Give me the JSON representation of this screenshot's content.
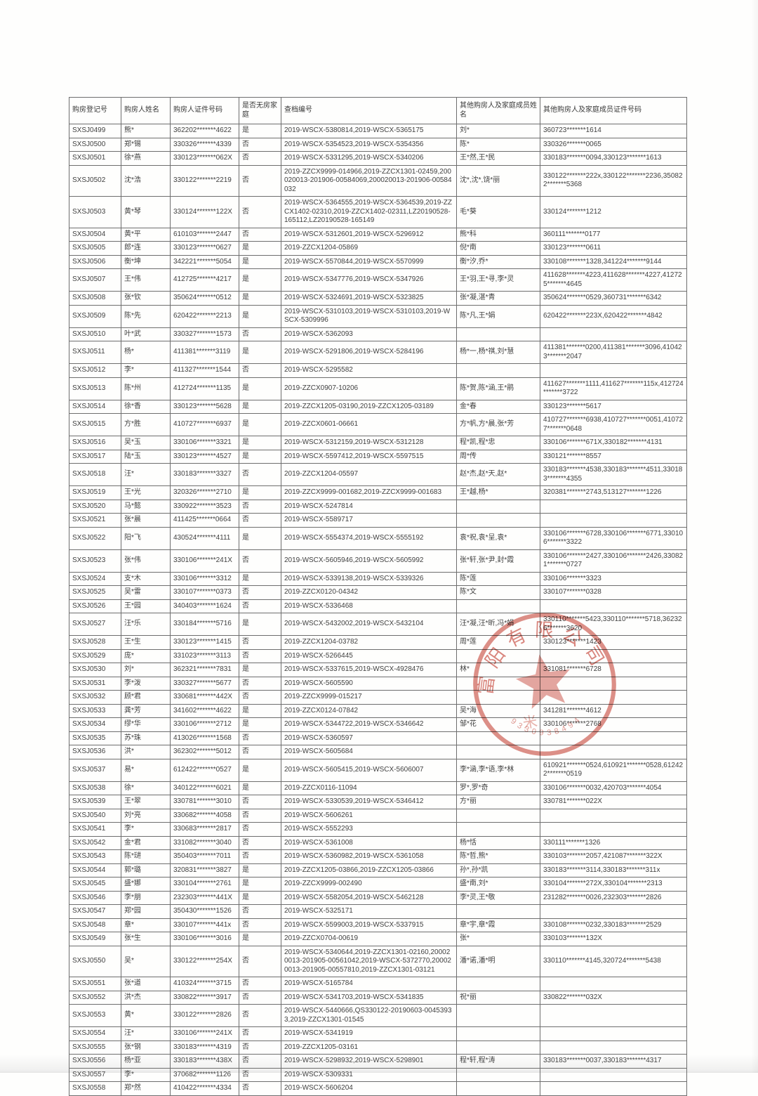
{
  "table": {
    "headers": [
      "购房登记号",
      "购房人姓名",
      "购房人证件号码",
      "是否无房家庭",
      "查档编号",
      "其他购房人及家庭成员姓名",
      "其他购房人及家庭成员证件号码"
    ],
    "rows": [
      [
        "SXSJ0499",
        "熊*",
        "362202*******4622",
        "是",
        "2019-WSCX-5380814,2019-WSCX-5365175",
        "刘*",
        "360723*******1614"
      ],
      [
        "SXSJ0500",
        "郑*锡",
        "330326*******4339",
        "否",
        "2019-WSCX-5354523,2019-WSCX-5354356",
        "陈*",
        "330326*******0065"
      ],
      [
        "SXSJ0501",
        "徐*燕",
        "330123*******062X",
        "否",
        "2019-WSCX-5331295,2019-WSCX-5340206",
        "王*然,王*民",
        "330183*******0094,330123*******1613"
      ],
      [
        "SXSJ0502",
        "沈*浩",
        "330122*******2219",
        "否",
        "2019-ZZCX9999-014966,2019-ZZCX1301-02459,200020013-201906-00584069,200020013-201906-00584032",
        "沈*,沈*,饶*丽",
        "330122*******222x,330122*******2236,350822*******5368"
      ],
      [
        "SXSJ0503",
        "黄*琴",
        "330124*******122X",
        "否",
        "2019-WSCX-5364555,2019-WSCX-5364539,2019-ZZCX1402-02310,2019-ZZCX1402-02311,LZ20190528-165112,LZ20190528-165149",
        "毛*葵",
        "330124*******1212"
      ],
      [
        "SXSJ0504",
        "黄*平",
        "610103*******2447",
        "否",
        "2019-WSCX-5312601,2019-WSCX-5296912",
        "熊*科",
        "360111*******0177"
      ],
      [
        "SXSJ0505",
        "郎*连",
        "330123*******0627",
        "是",
        "2019-ZZCX1204-05869",
        "倪*南",
        "330123*******0611"
      ],
      [
        "SXSJ0506",
        "衡*坤",
        "342221*******5054",
        "是",
        "2019-WSCX-5570844,2019-WSCX-5570999",
        "衡*汐,乔*",
        "330108*******1328,341224*******9144"
      ],
      [
        "SXSJ0507",
        "王*伟",
        "412725*******4217",
        "是",
        "2019-WSCX-5347776,2019-WSCX-5347926",
        "王*羽,王*寻,李*灵",
        "411628*******4223,411628*******4227,412725*******4645"
      ],
      [
        "SXSJ0508",
        "张*钦",
        "350624*******0512",
        "是",
        "2019-WSCX-5324691,2019-WSCX-5323825",
        "张*凝,湛*青",
        "350624*******0529,360731*******6342"
      ],
      [
        "SXSJ0509",
        "陈*先",
        "620422*******2213",
        "是",
        "2019-WSCX-5310103,2019-WSCX-5310103,2019-WSCX-5309996",
        "陈*凡,王*娟",
        "620422*******223X,620422*******4842"
      ],
      [
        "SXSJ0510",
        "叶*武",
        "330327*******1573",
        "否",
        "2019-WSCX-5362093",
        "",
        ""
      ],
      [
        "SXSJ0511",
        "杨*",
        "411381*******3119",
        "是",
        "2019-WSCX-5291806,2019-WSCX-5284196",
        "杨*一,杨*祺,刘*慧",
        "411381*******0200,411381*******3096,410423*******2047"
      ],
      [
        "SXSJ0512",
        "李*",
        "411327*******1544",
        "否",
        "2019-WSCX-5295582",
        "",
        ""
      ],
      [
        "SXSJ0513",
        "陈*州",
        "412724*******1135",
        "是",
        "2019-ZZCX0907-10206",
        "陈*贺,陈*涵,王*鹃",
        "411627*******1111,411627*******115x,412724*******3722"
      ],
      [
        "SXSJ0514",
        "徐*香",
        "330123*******5628",
        "是",
        "2019-ZZCX1205-03190,2019-ZZCX1205-03189",
        "金*春",
        "330123*******5617"
      ],
      [
        "SXSJ0515",
        "方*胜",
        "410727*******6937",
        "是",
        "2019-ZZCX0601-06661",
        "方*帆,方*晨,张*芳",
        "410727*******6938,410727*******0051,410727*******0648"
      ],
      [
        "SXSJ0516",
        "吴*玉",
        "330106*******3321",
        "是",
        "2019-WSCX-5312159,2019-WSCX-5312128",
        "程*凯,程*忠",
        "330106*******671X,330182*******4131"
      ],
      [
        "SXSJ0517",
        "陆*玉",
        "330123*******4527",
        "是",
        "2019-WSCX-5597412,2019-WSCX-5597515",
        "周*传",
        "330121*******8557"
      ],
      [
        "SXSJ0518",
        "汪*",
        "330183*******3327",
        "否",
        "2019-ZZCX1204-05597",
        "赵*杰,赵*天,赵*",
        "330183*******4538,330183*******4511,330183*******4355"
      ],
      [
        "SXSJ0519",
        "王*光",
        "320326*******2710",
        "是",
        "2019-ZZCX9999-001682,2019-ZZCX9999-001683",
        "王*越,杨*",
        "320381*******2743,513127*******1226"
      ],
      [
        "SXSJ0520",
        "马*懿",
        "330922*******3523",
        "否",
        "2019-WSCX-5247814",
        "",
        ""
      ],
      [
        "SXSJ0521",
        "张*晨",
        "411425*******0664",
        "否",
        "2019-WSCX-5589717",
        "",
        ""
      ],
      [
        "SXSJ0522",
        "阳*飞",
        "430524*******4111",
        "是",
        "2019-WSCX-5554374,2019-WSCX-5555192",
        "袁*祝,袁*呈,袁*",
        "330106*******6728,330106*******6771,330106*******3322"
      ],
      [
        "SXSJ0523",
        "张*伟",
        "330106*******241X",
        "否",
        "2019-WSCX-5605946,2019-WSCX-5605992",
        "张*轩,张*尹,封*霞",
        "330106*******2427,330106*******2426,330821*******0727"
      ],
      [
        "SXSJ0524",
        "支*木",
        "330106*******3312",
        "是",
        "2019-WSCX-5339138,2019-WSCX-5339326",
        "陈*莲",
        "330106*******3323"
      ],
      [
        "SXSJ0525",
        "吴*雷",
        "330107*******0373",
        "否",
        "2019-ZZCX0120-04342",
        "陈*文",
        "330107*******0328"
      ],
      [
        "SXSJ0526",
        "王*园",
        "340403*******1624",
        "否",
        "2019-WSCX-5336468",
        "",
        ""
      ],
      [
        "SXSJ0527",
        "汪*乐",
        "330184*******5716",
        "是",
        "2019-WSCX-5432002,2019-WSCX-5432104",
        "汪*凝,汪*昕,冯*娟",
        "330110*******5423,330110*******5718,362326*******3620"
      ],
      [
        "SXSJ0528",
        "王*生",
        "330123*******1415",
        "否",
        "2019-ZZCX1204-03782",
        "周*莲",
        "330123*******1423"
      ],
      [
        "SXSJ0529",
        "庞*",
        "331023*******3113",
        "否",
        "2019-WSCX-5266445",
        "",
        ""
      ],
      [
        "SXSJ0530",
        "刘*",
        "362321*******7831",
        "是",
        "2019-WSCX-5337615,2019-WSCX-4928476",
        "林*",
        "331081*******6728"
      ],
      [
        "SXSJ0531",
        "李*泼",
        "330327*******5677",
        "否",
        "2019-WSCX-5605590",
        "",
        ""
      ],
      [
        "SXSJ0532",
        "顾*君",
        "330681*******442X",
        "否",
        "2019-ZZCX9999-015217",
        "",
        ""
      ],
      [
        "SXSJ0533",
        "龚*芳",
        "341602*******4622",
        "是",
        "2019-ZZCX0124-07842",
        "吴*海",
        "341281*******4612"
      ],
      [
        "SXSJ0534",
        "缪*华",
        "330106*******2712",
        "是",
        "2019-WSCX-5344722,2019-WSCX-5346642",
        "邹*花",
        "330106*******2768"
      ],
      [
        "SXSJ0535",
        "苏*珠",
        "413026*******1568",
        "否",
        "2019-WSCX-5360597",
        "",
        ""
      ],
      [
        "SXSJ0536",
        "洪*",
        "362302*******5012",
        "否",
        "2019-WSCX-5605684",
        "",
        ""
      ],
      [
        "SXSJ0537",
        "易*",
        "612422*******0527",
        "是",
        "2019-WSCX-5605415,2019-WSCX-5606007",
        "李*涵,李*语,李*林",
        "610921*******0524,610921*******0528,612422*******0519"
      ],
      [
        "SXSJ0538",
        "徐*",
        "340122*******6021",
        "是",
        "2019-ZZCX0116-11094",
        "罗*,罗*奇",
        "330106*******0032,420703*******4054"
      ],
      [
        "SXSJ0539",
        "王*翠",
        "330781*******3010",
        "否",
        "2019-WSCX-5330539,2019-WSCX-5346412",
        "方*丽",
        "330781*******022X"
      ],
      [
        "SXSJ0540",
        "刘*亮",
        "330682*******4058",
        "否",
        "2019-WSCX-5606261",
        "",
        ""
      ],
      [
        "SXSJ0541",
        "李*",
        "330683*******2817",
        "否",
        "2019-WSCX-5552293",
        "",
        ""
      ],
      [
        "SXSJ0542",
        "金*君",
        "331082*******3040",
        "否",
        "2019-WSCX-5361008",
        "杨*恬",
        "330111*******1326"
      ],
      [
        "SXSJ0543",
        "陈*琎",
        "350403*******7011",
        "否",
        "2019-WSCX-5360982,2019-WSCX-5361058",
        "陈*哲,熊*",
        "330103*******2057,421087*******322X"
      ],
      [
        "SXSJ0544",
        "郭*璐",
        "320831*******3827",
        "是",
        "2019-ZZCX1205-03866,2019-ZZCX1205-03866",
        "孙*,孙*凯",
        "330183*******3114,330183*******311x"
      ],
      [
        "SXSJ0545",
        "盛*娜",
        "330104*******2761",
        "是",
        "2019-ZZCX9999-002490",
        "盛*南,刘*",
        "330104*******272X,330104*******2313"
      ],
      [
        "SXSJ0546",
        "李*朋",
        "232303*******441X",
        "是",
        "2019-WSCX-5582054,2019-WSCX-5462128",
        "李*灵,王*敬",
        "231282*******0026,232303*******2826"
      ],
      [
        "SXSJ0547",
        "郑*园",
        "350430*******1526",
        "否",
        "2019-WSCX-5325171",
        "",
        ""
      ],
      [
        "SXSJ0548",
        "章*",
        "330107*******441x",
        "否",
        "2019-WSCX-5599003,2019-WSCX-5337915",
        "章*宇,章*霞",
        "330108*******0232,330183*******2529"
      ],
      [
        "SXSJ0549",
        "张*生",
        "330106*******3016",
        "是",
        "2019-ZZCX0704-00619",
        "张*",
        "330103*******132X"
      ],
      [
        "SXSJ0550",
        "吴*",
        "330122*******254X",
        "否",
        "2019-WSCX-5340644,2019-ZZCX1301-02160,200020013-201905-00561042,2019-WSCX-5372770,200020013-201905-00557810,2019-ZZCX1301-03121",
        "潘*诺,潘*明",
        "330110*******4145,320724*******5438"
      ],
      [
        "SXSJ0551",
        "张*道",
        "410324*******3715",
        "否",
        "2019-WSCX-5165784",
        "",
        ""
      ],
      [
        "SXSJ0552",
        "洪*杰",
        "330822*******3917",
        "否",
        "2019-WSCX-5341703,2019-WSCX-5341835",
        "祝*丽",
        "330822*******032X"
      ],
      [
        "SXSJ0553",
        "黄*",
        "330122*******2826",
        "否",
        "2019-WSCX-5440666,QS330122-20190603-00453933,2019-ZZCX1301-01545",
        "",
        ""
      ],
      [
        "SXSJ0554",
        "汪*",
        "330106*******241X",
        "否",
        "2019-WSCX-5341919",
        "",
        ""
      ],
      [
        "SXSJ0555",
        "张*钢",
        "330183*******4319",
        "否",
        "2019-ZZCX1205-03161",
        "",
        ""
      ],
      [
        "SXSJ0556",
        "杨*亚",
        "330183*******438X",
        "否",
        "2019-WSCX-5298932,2019-WSCX-5298901",
        "程*轩,程*涛",
        "330183*******0037,330183*******4317"
      ],
      [
        "SXSJ0557",
        "李*",
        "370682*******1126",
        "否",
        "2019-WSCX-5309331",
        "",
        ""
      ],
      [
        "SXSJ0558",
        "郑*然",
        "410422*******4334",
        "否",
        "2019-WSCX-5606204",
        "",
        ""
      ]
    ]
  },
  "stamp": {
    "arc_text": "富阳有限公司",
    "serial_digits": "9330938494",
    "extra_char": "米",
    "color": "#c94f43"
  }
}
